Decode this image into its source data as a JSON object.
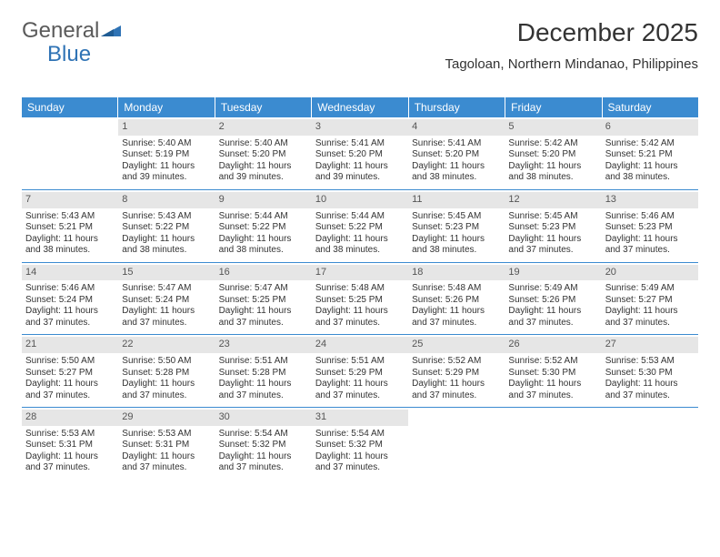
{
  "logo": {
    "text_a": "General",
    "text_b": "Blue"
  },
  "title": "December 2025",
  "location": "Tagoloan, Northern Mindanao, Philippines",
  "colors": {
    "header_bg": "#3b8bd0",
    "header_fg": "#ffffff",
    "daynum_bg": "#e6e6e6",
    "row_border": "#3b8bd0",
    "logo_blue": "#2f73b5",
    "logo_gray": "#5a5a5a"
  },
  "day_headers": [
    "Sunday",
    "Monday",
    "Tuesday",
    "Wednesday",
    "Thursday",
    "Friday",
    "Saturday"
  ],
  "weeks": [
    [
      null,
      {
        "n": "1",
        "sr": "Sunrise: 5:40 AM",
        "ss": "Sunset: 5:19 PM",
        "d1": "Daylight: 11 hours",
        "d2": "and 39 minutes."
      },
      {
        "n": "2",
        "sr": "Sunrise: 5:40 AM",
        "ss": "Sunset: 5:20 PM",
        "d1": "Daylight: 11 hours",
        "d2": "and 39 minutes."
      },
      {
        "n": "3",
        "sr": "Sunrise: 5:41 AM",
        "ss": "Sunset: 5:20 PM",
        "d1": "Daylight: 11 hours",
        "d2": "and 39 minutes."
      },
      {
        "n": "4",
        "sr": "Sunrise: 5:41 AM",
        "ss": "Sunset: 5:20 PM",
        "d1": "Daylight: 11 hours",
        "d2": "and 38 minutes."
      },
      {
        "n": "5",
        "sr": "Sunrise: 5:42 AM",
        "ss": "Sunset: 5:20 PM",
        "d1": "Daylight: 11 hours",
        "d2": "and 38 minutes."
      },
      {
        "n": "6",
        "sr": "Sunrise: 5:42 AM",
        "ss": "Sunset: 5:21 PM",
        "d1": "Daylight: 11 hours",
        "d2": "and 38 minutes."
      }
    ],
    [
      {
        "n": "7",
        "sr": "Sunrise: 5:43 AM",
        "ss": "Sunset: 5:21 PM",
        "d1": "Daylight: 11 hours",
        "d2": "and 38 minutes."
      },
      {
        "n": "8",
        "sr": "Sunrise: 5:43 AM",
        "ss": "Sunset: 5:22 PM",
        "d1": "Daylight: 11 hours",
        "d2": "and 38 minutes."
      },
      {
        "n": "9",
        "sr": "Sunrise: 5:44 AM",
        "ss": "Sunset: 5:22 PM",
        "d1": "Daylight: 11 hours",
        "d2": "and 38 minutes."
      },
      {
        "n": "10",
        "sr": "Sunrise: 5:44 AM",
        "ss": "Sunset: 5:22 PM",
        "d1": "Daylight: 11 hours",
        "d2": "and 38 minutes."
      },
      {
        "n": "11",
        "sr": "Sunrise: 5:45 AM",
        "ss": "Sunset: 5:23 PM",
        "d1": "Daylight: 11 hours",
        "d2": "and 38 minutes."
      },
      {
        "n": "12",
        "sr": "Sunrise: 5:45 AM",
        "ss": "Sunset: 5:23 PM",
        "d1": "Daylight: 11 hours",
        "d2": "and 37 minutes."
      },
      {
        "n": "13",
        "sr": "Sunrise: 5:46 AM",
        "ss": "Sunset: 5:23 PM",
        "d1": "Daylight: 11 hours",
        "d2": "and 37 minutes."
      }
    ],
    [
      {
        "n": "14",
        "sr": "Sunrise: 5:46 AM",
        "ss": "Sunset: 5:24 PM",
        "d1": "Daylight: 11 hours",
        "d2": "and 37 minutes."
      },
      {
        "n": "15",
        "sr": "Sunrise: 5:47 AM",
        "ss": "Sunset: 5:24 PM",
        "d1": "Daylight: 11 hours",
        "d2": "and 37 minutes."
      },
      {
        "n": "16",
        "sr": "Sunrise: 5:47 AM",
        "ss": "Sunset: 5:25 PM",
        "d1": "Daylight: 11 hours",
        "d2": "and 37 minutes."
      },
      {
        "n": "17",
        "sr": "Sunrise: 5:48 AM",
        "ss": "Sunset: 5:25 PM",
        "d1": "Daylight: 11 hours",
        "d2": "and 37 minutes."
      },
      {
        "n": "18",
        "sr": "Sunrise: 5:48 AM",
        "ss": "Sunset: 5:26 PM",
        "d1": "Daylight: 11 hours",
        "d2": "and 37 minutes."
      },
      {
        "n": "19",
        "sr": "Sunrise: 5:49 AM",
        "ss": "Sunset: 5:26 PM",
        "d1": "Daylight: 11 hours",
        "d2": "and 37 minutes."
      },
      {
        "n": "20",
        "sr": "Sunrise: 5:49 AM",
        "ss": "Sunset: 5:27 PM",
        "d1": "Daylight: 11 hours",
        "d2": "and 37 minutes."
      }
    ],
    [
      {
        "n": "21",
        "sr": "Sunrise: 5:50 AM",
        "ss": "Sunset: 5:27 PM",
        "d1": "Daylight: 11 hours",
        "d2": "and 37 minutes."
      },
      {
        "n": "22",
        "sr": "Sunrise: 5:50 AM",
        "ss": "Sunset: 5:28 PM",
        "d1": "Daylight: 11 hours",
        "d2": "and 37 minutes."
      },
      {
        "n": "23",
        "sr": "Sunrise: 5:51 AM",
        "ss": "Sunset: 5:28 PM",
        "d1": "Daylight: 11 hours",
        "d2": "and 37 minutes."
      },
      {
        "n": "24",
        "sr": "Sunrise: 5:51 AM",
        "ss": "Sunset: 5:29 PM",
        "d1": "Daylight: 11 hours",
        "d2": "and 37 minutes."
      },
      {
        "n": "25",
        "sr": "Sunrise: 5:52 AM",
        "ss": "Sunset: 5:29 PM",
        "d1": "Daylight: 11 hours",
        "d2": "and 37 minutes."
      },
      {
        "n": "26",
        "sr": "Sunrise: 5:52 AM",
        "ss": "Sunset: 5:30 PM",
        "d1": "Daylight: 11 hours",
        "d2": "and 37 minutes."
      },
      {
        "n": "27",
        "sr": "Sunrise: 5:53 AM",
        "ss": "Sunset: 5:30 PM",
        "d1": "Daylight: 11 hours",
        "d2": "and 37 minutes."
      }
    ],
    [
      {
        "n": "28",
        "sr": "Sunrise: 5:53 AM",
        "ss": "Sunset: 5:31 PM",
        "d1": "Daylight: 11 hours",
        "d2": "and 37 minutes."
      },
      {
        "n": "29",
        "sr": "Sunrise: 5:53 AM",
        "ss": "Sunset: 5:31 PM",
        "d1": "Daylight: 11 hours",
        "d2": "and 37 minutes."
      },
      {
        "n": "30",
        "sr": "Sunrise: 5:54 AM",
        "ss": "Sunset: 5:32 PM",
        "d1": "Daylight: 11 hours",
        "d2": "and 37 minutes."
      },
      {
        "n": "31",
        "sr": "Sunrise: 5:54 AM",
        "ss": "Sunset: 5:32 PM",
        "d1": "Daylight: 11 hours",
        "d2": "and 37 minutes."
      },
      null,
      null,
      null
    ]
  ]
}
